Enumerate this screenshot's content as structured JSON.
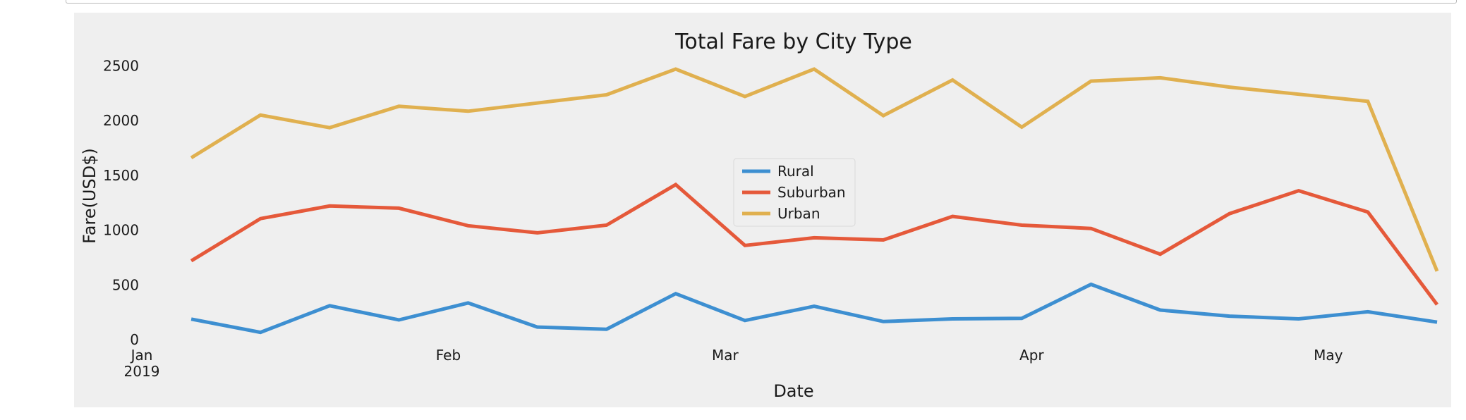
{
  "chart_data": {
    "type": "line",
    "title": "Total Fare by City Type",
    "xlabel": "Date",
    "ylabel": "Fare(USD$)",
    "x": [
      "2019-01-06",
      "2019-01-13",
      "2019-01-20",
      "2019-01-27",
      "2019-02-03",
      "2019-02-10",
      "2019-02-17",
      "2019-02-24",
      "2019-03-03",
      "2019-03-10",
      "2019-03-17",
      "2019-03-24",
      "2019-03-31",
      "2019-04-07",
      "2019-04-14",
      "2019-04-21",
      "2019-04-28",
      "2019-05-05",
      "2019-05-12"
    ],
    "xticks": [
      {
        "date": "2019-01-01",
        "label": "Jan",
        "sublabel": "2019"
      },
      {
        "date": "2019-02-01",
        "label": "Feb",
        "sublabel": ""
      },
      {
        "date": "2019-03-01",
        "label": "Mar",
        "sublabel": ""
      },
      {
        "date": "2019-04-01",
        "label": "Apr",
        "sublabel": ""
      },
      {
        "date": "2019-05-01",
        "label": "May",
        "sublabel": ""
      }
    ],
    "xlim": [
      "2019-01-01",
      "2019-05-13"
    ],
    "ylim": [
      0,
      2650
    ],
    "yticks": [
      0,
      500,
      1000,
      1500,
      2000,
      2500
    ],
    "grid": false,
    "legend_position": "center",
    "series": [
      {
        "name": "Rural",
        "color": "#3d8fd1",
        "values": [
          188,
          67,
          310,
          180,
          335,
          115,
          95,
          420,
          175,
          305,
          165,
          190,
          195,
          505,
          270,
          215,
          190,
          255,
          160
        ]
      },
      {
        "name": "Suburban",
        "color": "#e5593a",
        "values": [
          720,
          1105,
          1220,
          1200,
          1040,
          975,
          1045,
          1415,
          860,
          930,
          910,
          1125,
          1045,
          1015,
          780,
          1150,
          1360,
          1165,
          320
        ]
      },
      {
        "name": "Urban",
        "color": "#e0b04f",
        "values": [
          1660,
          2050,
          1935,
          2130,
          2085,
          2160,
          2235,
          2470,
          2220,
          2470,
          2045,
          2370,
          1940,
          2360,
          2390,
          2305,
          2240,
          2175,
          625
        ]
      }
    ]
  }
}
